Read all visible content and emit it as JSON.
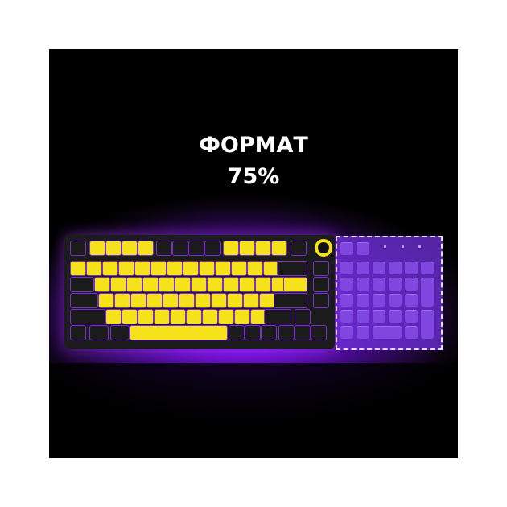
{
  "headline": {
    "line1": "ФОРМАТ",
    "line2": "75%"
  },
  "colors": {
    "keycap_yellow": "#f5e21a",
    "keycap_black": "#1b1b1b",
    "accent_purple": "#8a1cff",
    "numpad_overlay": "#6a2ed0"
  },
  "product": {
    "layout": "75%",
    "knob": "yellow-ring-knob",
    "numpad_outline": "dashed-missing-numpad"
  }
}
